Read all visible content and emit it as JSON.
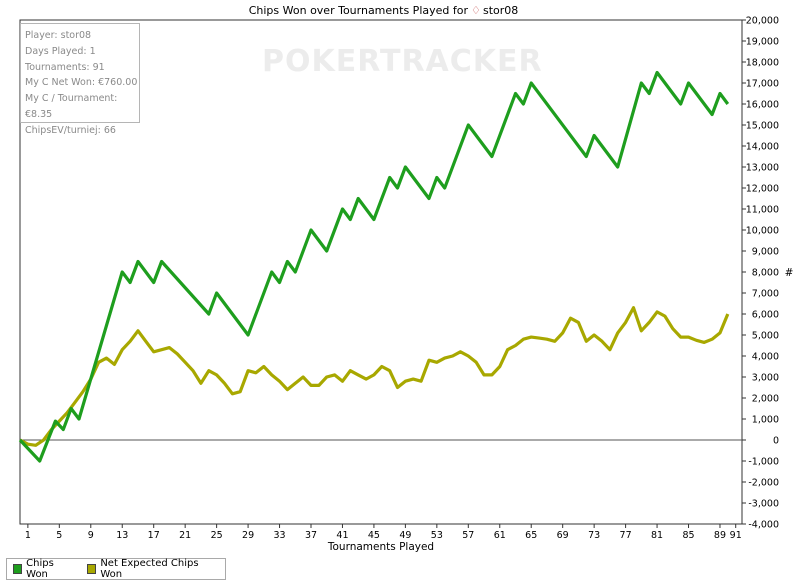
{
  "chart_data": {
    "type": "line",
    "title": "Chips Won over Tournaments Played for",
    "player_icon": "player-icon",
    "player_name": "stor08",
    "xlabel": "Tournaments Played",
    "ylabel": "#",
    "xlim": [
      0,
      91.8
    ],
    "ylim": [
      -4000,
      20000
    ],
    "x_ticks": [
      1,
      5,
      9,
      13,
      17,
      21,
      25,
      29,
      33,
      37,
      41,
      45,
      49,
      53,
      57,
      61,
      65,
      69,
      73,
      77,
      81,
      85,
      89,
      91
    ],
    "y_ticks": [
      -4000,
      -3000,
      -2000,
      -1000,
      0,
      1000,
      2000,
      3000,
      4000,
      5000,
      6000,
      7000,
      8000,
      9000,
      10000,
      11000,
      12000,
      13000,
      14000,
      15000,
      16000,
      17000,
      18000,
      19000,
      20000
    ],
    "y_tick_labels": [
      "-4,000",
      "-3,000",
      "-2,000",
      "-1,000",
      "0",
      "1,000",
      "2,000",
      "3,000",
      "4,000",
      "5,000",
      "6,000",
      "7,000",
      "8,000",
      "9,000",
      "10,000",
      "11,000",
      "12,000",
      "13,000",
      "14,000",
      "15,000",
      "16,000",
      "17,000",
      "18,000",
      "19,000",
      "20,000"
    ],
    "series": [
      {
        "name": "Chips Won",
        "color": "#1e9e1e",
        "points": [
          [
            0,
            0
          ],
          [
            2.5,
            -1000
          ],
          [
            4.5,
            900
          ],
          [
            5.5,
            500
          ],
          [
            6.5,
            1500
          ],
          [
            7.5,
            1000
          ],
          [
            13,
            8000
          ],
          [
            14,
            7500
          ],
          [
            15,
            8500
          ],
          [
            17,
            7500
          ],
          [
            18,
            8500
          ],
          [
            24,
            6000
          ],
          [
            25,
            7000
          ],
          [
            29,
            5000
          ],
          [
            32,
            8000
          ],
          [
            33,
            7500
          ],
          [
            34,
            8500
          ],
          [
            35,
            8000
          ],
          [
            37,
            10000
          ],
          [
            39,
            9000
          ],
          [
            41,
            11000
          ],
          [
            42,
            10500
          ],
          [
            43,
            11500
          ],
          [
            45,
            10500
          ],
          [
            47,
            12500
          ],
          [
            48,
            12000
          ],
          [
            49,
            13000
          ],
          [
            52,
            11500
          ],
          [
            53,
            12500
          ],
          [
            54,
            12000
          ],
          [
            57,
            15000
          ],
          [
            60,
            13500
          ],
          [
            63,
            16500
          ],
          [
            64,
            16000
          ],
          [
            65,
            17000
          ],
          [
            72,
            13500
          ],
          [
            73,
            14500
          ],
          [
            76,
            13000
          ],
          [
            79,
            17000
          ],
          [
            80,
            16500
          ],
          [
            81,
            17500
          ],
          [
            84,
            16000
          ],
          [
            85,
            17000
          ],
          [
            88,
            15500
          ],
          [
            89,
            16500
          ],
          [
            90,
            16000
          ]
        ]
      },
      {
        "name": "Net Expected Chips Won",
        "color": "#a8a800",
        "points": [
          [
            0,
            0
          ],
          [
            1,
            -200
          ],
          [
            2,
            -250
          ],
          [
            3,
            0
          ],
          [
            4,
            500
          ],
          [
            5,
            900
          ],
          [
            6,
            1300
          ],
          [
            7,
            1800
          ],
          [
            8,
            2300
          ],
          [
            9,
            2900
          ],
          [
            10,
            3700
          ],
          [
            11,
            3900
          ],
          [
            12,
            3600
          ],
          [
            13,
            4300
          ],
          [
            14,
            4700
          ],
          [
            15,
            5200
          ],
          [
            16,
            4700
          ],
          [
            17,
            4200
          ],
          [
            18,
            4300
          ],
          [
            19,
            4400
          ],
          [
            20,
            4100
          ],
          [
            21,
            3700
          ],
          [
            22,
            3300
          ],
          [
            23,
            2700
          ],
          [
            24,
            3300
          ],
          [
            25,
            3100
          ],
          [
            26,
            2700
          ],
          [
            27,
            2200
          ],
          [
            28,
            2300
          ],
          [
            29,
            3300
          ],
          [
            30,
            3200
          ],
          [
            31,
            3500
          ],
          [
            32,
            3100
          ],
          [
            33,
            2800
          ],
          [
            34,
            2400
          ],
          [
            35,
            2700
          ],
          [
            36,
            3000
          ],
          [
            37,
            2600
          ],
          [
            38,
            2600
          ],
          [
            39,
            3000
          ],
          [
            40,
            3100
          ],
          [
            41,
            2800
          ],
          [
            42,
            3300
          ],
          [
            43,
            3100
          ],
          [
            44,
            2900
          ],
          [
            45,
            3100
          ],
          [
            46,
            3500
          ],
          [
            47,
            3300
          ],
          [
            48,
            2500
          ],
          [
            49,
            2800
          ],
          [
            50,
            2900
          ],
          [
            51,
            2800
          ],
          [
            52,
            3800
          ],
          [
            53,
            3700
          ],
          [
            54,
            3900
          ],
          [
            55,
            4000
          ],
          [
            56,
            4200
          ],
          [
            57,
            4000
          ],
          [
            58,
            3700
          ],
          [
            59,
            3100
          ],
          [
            60,
            3100
          ],
          [
            61,
            3500
          ],
          [
            62,
            4300
          ],
          [
            63,
            4500
          ],
          [
            64,
            4800
          ],
          [
            65,
            4900
          ],
          [
            66,
            4850
          ],
          [
            67,
            4800
          ],
          [
            68,
            4700
          ],
          [
            69,
            5100
          ],
          [
            70,
            5800
          ],
          [
            71,
            5600
          ],
          [
            72,
            4700
          ],
          [
            73,
            5000
          ],
          [
            74,
            4700
          ],
          [
            75,
            4300
          ],
          [
            76,
            5100
          ],
          [
            77,
            5600
          ],
          [
            78,
            6300
          ],
          [
            79,
            5200
          ],
          [
            80,
            5600
          ],
          [
            81,
            6100
          ],
          [
            82,
            5900
          ],
          [
            83,
            5300
          ],
          [
            84,
            4900
          ],
          [
            85,
            4900
          ],
          [
            86,
            4750
          ],
          [
            87,
            4650
          ],
          [
            88,
            4800
          ],
          [
            89,
            5100
          ],
          [
            90,
            6000
          ]
        ]
      }
    ],
    "zero_line": true,
    "legend_position": "bottom-left"
  },
  "info": {
    "player": "Player: stor08",
    "days_played": "Days Played: 1",
    "tournaments": "Tournaments: 91",
    "net_won": "My C Net Won: €760.00",
    "per_tournament": "My C / Tournament: €8.35",
    "chipsev": "ChipsEV/turniej: 66"
  },
  "watermark": "POKERTRACKER",
  "legend": {
    "chips_won": "Chips Won",
    "net_expected": "Net Expected Chips Won"
  }
}
